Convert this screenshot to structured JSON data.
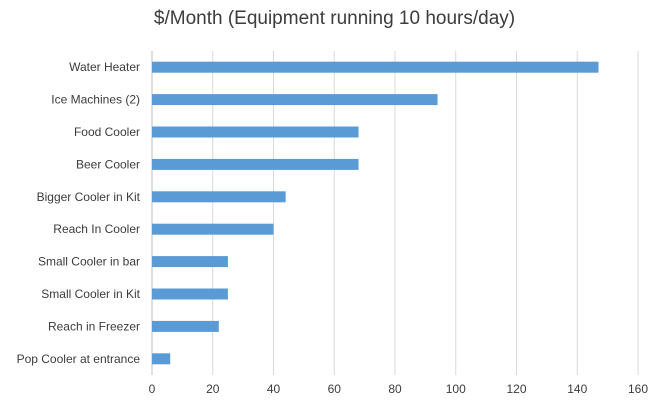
{
  "chart_data": {
    "type": "bar",
    "orientation": "horizontal",
    "title": "$/Month (Equipment running 10 hours/day)",
    "xlabel": "",
    "ylabel": "",
    "categories": [
      "Water Heater",
      "Ice Machines (2)",
      "Food Cooler",
      "Beer Cooler",
      "Bigger Cooler in Kit",
      "Reach In Cooler",
      "Small Cooler in bar",
      "Small Cooler in Kit",
      "Reach in Freezer",
      "Pop Cooler at entrance"
    ],
    "values": [
      147,
      94,
      68,
      68,
      44,
      40,
      25,
      25,
      22,
      6
    ],
    "xlim": [
      0,
      160
    ],
    "xticks": [
      0,
      20,
      40,
      60,
      80,
      100,
      120,
      140,
      160
    ],
    "grid": "vertical",
    "legend": "none",
    "colors": {
      "bar": "#5b9bd5",
      "grid": "#d9d9d9",
      "axis": "#bfbfbf",
      "label_text": "#3c3c3c",
      "title_text": "#3c3c3c"
    }
  }
}
